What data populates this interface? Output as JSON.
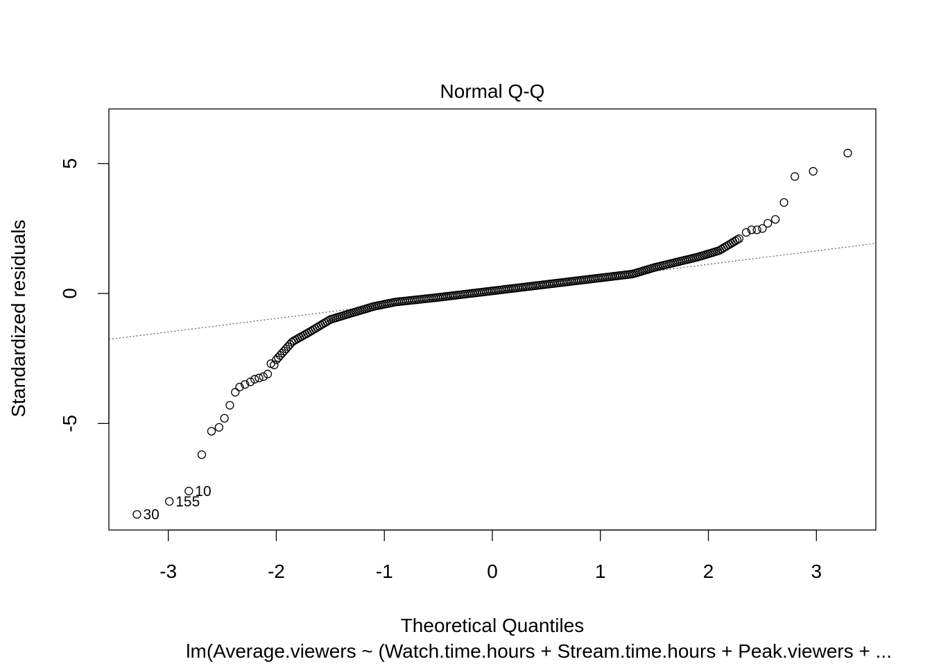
{
  "chart_data": {
    "type": "scatter",
    "title": "Normal Q-Q",
    "xlabel": "Theoretical Quantiles",
    "ylabel": "Standardized residuals",
    "subtitle": "lm(Average.viewers ~ (Watch.time.hours + Stream.time.hours + Peak.viewers + ...",
    "xlim": [
      -3.55,
      3.55
    ],
    "ylim": [
      -9.1,
      7.1
    ],
    "x_ticks": [
      -3,
      -2,
      -1,
      0,
      1,
      2,
      3
    ],
    "y_ticks": [
      -5,
      0,
      5
    ],
    "grid": false,
    "point_style": "open-circle",
    "reference_line": {
      "style": "dotted",
      "slope": 0.52,
      "intercept": 0.08
    },
    "point_labels": [
      {
        "label": "30",
        "x": -3.29,
        "y": -8.5
      },
      {
        "label": "155",
        "x": -2.99,
        "y": -8.0
      },
      {
        "label": "10",
        "x": -2.81,
        "y": -7.6
      }
    ],
    "outlier_points": [
      {
        "x": -2.69,
        "y": -6.2
      },
      {
        "x": -2.6,
        "y": -5.3
      },
      {
        "x": -2.53,
        "y": -5.15
      },
      {
        "x": -2.48,
        "y": -4.8
      },
      {
        "x": -2.43,
        "y": -4.3
      },
      {
        "x": -2.38,
        "y": -3.8
      },
      {
        "x": -2.34,
        "y": -3.6
      },
      {
        "x": -2.29,
        "y": -3.5
      },
      {
        "x": -2.24,
        "y": -3.4
      },
      {
        "x": -2.2,
        "y": -3.3
      },
      {
        "x": -2.16,
        "y": -3.25
      },
      {
        "x": -2.12,
        "y": -3.2
      },
      {
        "x": -2.08,
        "y": -3.1
      },
      {
        "x": -2.05,
        "y": -2.7
      },
      {
        "x": -2.02,
        "y": -2.75
      },
      {
        "x": 2.35,
        "y": 2.35
      },
      {
        "x": 2.4,
        "y": 2.45
      },
      {
        "x": 2.45,
        "y": 2.45
      },
      {
        "x": 2.5,
        "y": 2.5
      },
      {
        "x": 2.55,
        "y": 2.7
      },
      {
        "x": 2.62,
        "y": 2.85
      },
      {
        "x": 2.7,
        "y": 3.5
      },
      {
        "x": 2.8,
        "y": 4.5
      },
      {
        "x": 2.97,
        "y": 4.7
      },
      {
        "x": 3.29,
        "y": 5.4
      }
    ],
    "bulk_curve": [
      {
        "x": -2.0,
        "y": -2.55
      },
      {
        "x": -1.85,
        "y": -1.85
      },
      {
        "x": -1.7,
        "y": -1.5
      },
      {
        "x": -1.5,
        "y": -1.0
      },
      {
        "x": -1.3,
        "y": -0.75
      },
      {
        "x": -1.1,
        "y": -0.5
      },
      {
        "x": -0.9,
        "y": -0.33
      },
      {
        "x": -0.5,
        "y": -0.15
      },
      {
        "x": 0.0,
        "y": 0.1
      },
      {
        "x": 0.5,
        "y": 0.35
      },
      {
        "x": 1.0,
        "y": 0.6
      },
      {
        "x": 1.3,
        "y": 0.75
      },
      {
        "x": 1.5,
        "y": 1.0
      },
      {
        "x": 1.7,
        "y": 1.2
      },
      {
        "x": 1.9,
        "y": 1.4
      },
      {
        "x": 2.1,
        "y": 1.65
      },
      {
        "x": 2.2,
        "y": 1.9
      },
      {
        "x": 2.3,
        "y": 2.15
      }
    ]
  }
}
